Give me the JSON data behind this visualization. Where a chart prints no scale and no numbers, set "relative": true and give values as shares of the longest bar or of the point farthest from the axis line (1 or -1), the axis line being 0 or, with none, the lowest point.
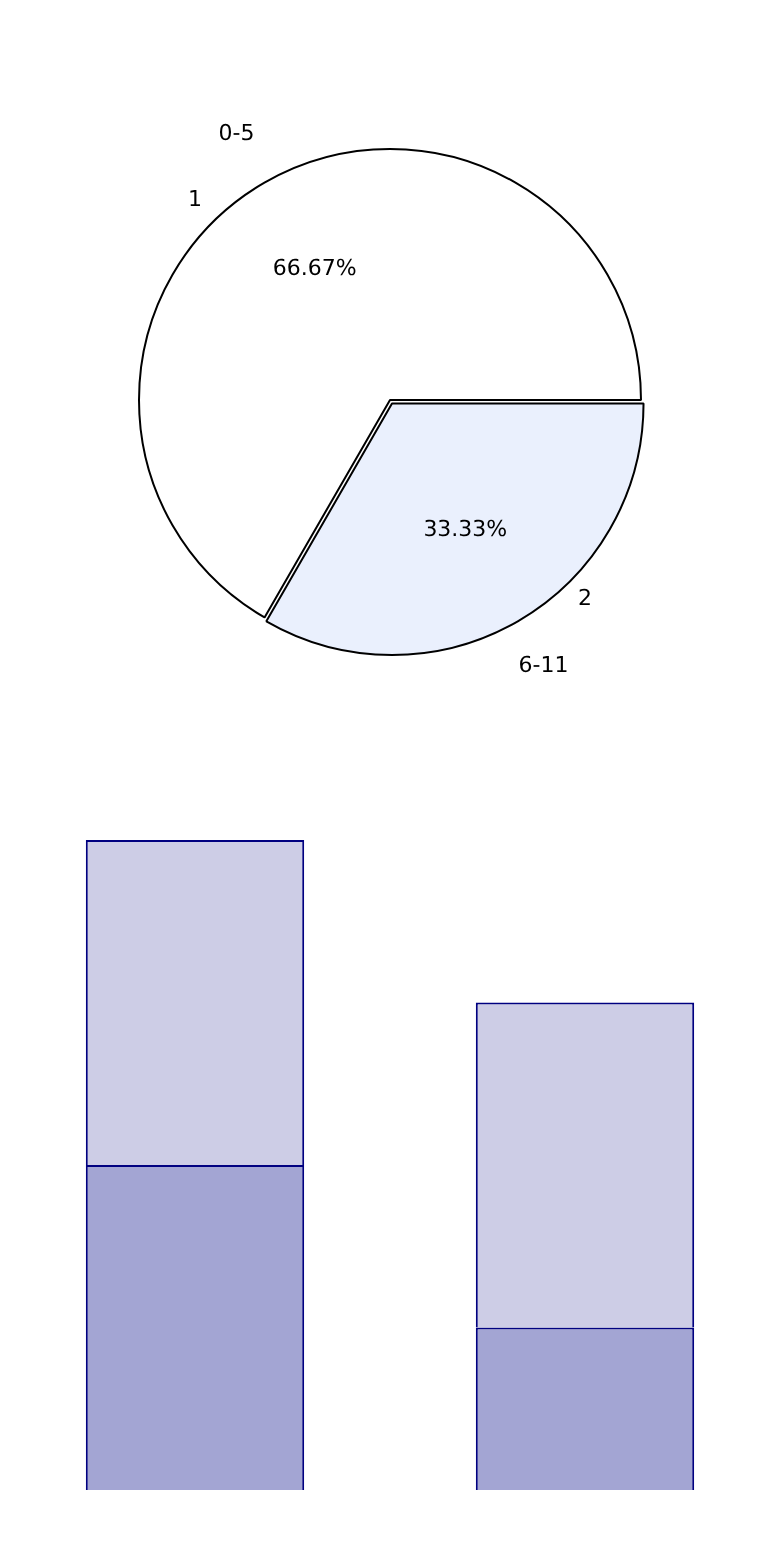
{
  "chart_data": [
    {
      "type": "pie",
      "categories": [
        "0-5",
        "6-11"
      ],
      "values": [
        66.67,
        33.33
      ],
      "colors": [
        "#ffffff",
        "#eaf0fd"
      ],
      "value_labels": [
        "66.67%",
        "33.33%"
      ],
      "annotations": [
        "1",
        "2"
      ],
      "legend": false
    },
    {
      "type": "bar",
      "categories": [
        null,
        null
      ],
      "stacked": true,
      "relative": true,
      "legend": false,
      "series": [
        {
          "color": "#a3a5d3",
          "values": [
            0.5,
            0.25
          ]
        },
        {
          "color": "#cdcde6",
          "values": [
            0.5,
            0.5
          ]
        }
      ]
    }
  ]
}
